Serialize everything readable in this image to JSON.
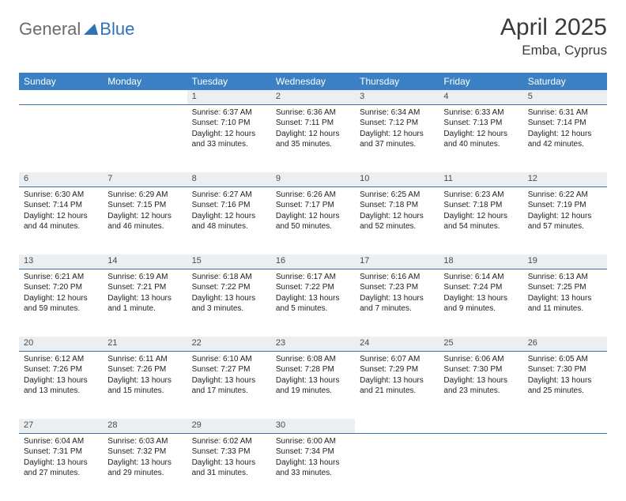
{
  "logo": {
    "general": "General",
    "blue": "Blue"
  },
  "title": "April 2025",
  "location": "Emba, Cyprus",
  "day_headers": [
    "Sunday",
    "Monday",
    "Tuesday",
    "Wednesday",
    "Thursday",
    "Friday",
    "Saturday"
  ],
  "colors": {
    "header_bg": "#3a80c3",
    "header_text": "#ffffff",
    "daynum_bg": "#eceff2",
    "daynum_border": "#3a6fa5",
    "body_text": "#222222",
    "logo_gray": "#6b6b6b",
    "logo_blue": "#2f73b5",
    "title_color": "#3a3a3a"
  },
  "fonts": {
    "title_size_pt": 30,
    "location_size_pt": 17,
    "header_size_pt": 12,
    "daynum_size_pt": 11,
    "cell_size_pt": 10
  },
  "layout": {
    "cols": 7,
    "rows": 5,
    "first_weekday_index": 2
  },
  "weeks": [
    [
      null,
      null,
      {
        "n": "1",
        "sunrise": "6:37 AM",
        "sunset": "7:10 PM",
        "daylight": "12 hours and 33 minutes."
      },
      {
        "n": "2",
        "sunrise": "6:36 AM",
        "sunset": "7:11 PM",
        "daylight": "12 hours and 35 minutes."
      },
      {
        "n": "3",
        "sunrise": "6:34 AM",
        "sunset": "7:12 PM",
        "daylight": "12 hours and 37 minutes."
      },
      {
        "n": "4",
        "sunrise": "6:33 AM",
        "sunset": "7:13 PM",
        "daylight": "12 hours and 40 minutes."
      },
      {
        "n": "5",
        "sunrise": "6:31 AM",
        "sunset": "7:14 PM",
        "daylight": "12 hours and 42 minutes."
      }
    ],
    [
      {
        "n": "6",
        "sunrise": "6:30 AM",
        "sunset": "7:14 PM",
        "daylight": "12 hours and 44 minutes."
      },
      {
        "n": "7",
        "sunrise": "6:29 AM",
        "sunset": "7:15 PM",
        "daylight": "12 hours and 46 minutes."
      },
      {
        "n": "8",
        "sunrise": "6:27 AM",
        "sunset": "7:16 PM",
        "daylight": "12 hours and 48 minutes."
      },
      {
        "n": "9",
        "sunrise": "6:26 AM",
        "sunset": "7:17 PM",
        "daylight": "12 hours and 50 minutes."
      },
      {
        "n": "10",
        "sunrise": "6:25 AM",
        "sunset": "7:18 PM",
        "daylight": "12 hours and 52 minutes."
      },
      {
        "n": "11",
        "sunrise": "6:23 AM",
        "sunset": "7:18 PM",
        "daylight": "12 hours and 54 minutes."
      },
      {
        "n": "12",
        "sunrise": "6:22 AM",
        "sunset": "7:19 PM",
        "daylight": "12 hours and 57 minutes."
      }
    ],
    [
      {
        "n": "13",
        "sunrise": "6:21 AM",
        "sunset": "7:20 PM",
        "daylight": "12 hours and 59 minutes."
      },
      {
        "n": "14",
        "sunrise": "6:19 AM",
        "sunset": "7:21 PM",
        "daylight": "13 hours and 1 minute."
      },
      {
        "n": "15",
        "sunrise": "6:18 AM",
        "sunset": "7:22 PM",
        "daylight": "13 hours and 3 minutes."
      },
      {
        "n": "16",
        "sunrise": "6:17 AM",
        "sunset": "7:22 PM",
        "daylight": "13 hours and 5 minutes."
      },
      {
        "n": "17",
        "sunrise": "6:16 AM",
        "sunset": "7:23 PM",
        "daylight": "13 hours and 7 minutes."
      },
      {
        "n": "18",
        "sunrise": "6:14 AM",
        "sunset": "7:24 PM",
        "daylight": "13 hours and 9 minutes."
      },
      {
        "n": "19",
        "sunrise": "6:13 AM",
        "sunset": "7:25 PM",
        "daylight": "13 hours and 11 minutes."
      }
    ],
    [
      {
        "n": "20",
        "sunrise": "6:12 AM",
        "sunset": "7:26 PM",
        "daylight": "13 hours and 13 minutes."
      },
      {
        "n": "21",
        "sunrise": "6:11 AM",
        "sunset": "7:26 PM",
        "daylight": "13 hours and 15 minutes."
      },
      {
        "n": "22",
        "sunrise": "6:10 AM",
        "sunset": "7:27 PM",
        "daylight": "13 hours and 17 minutes."
      },
      {
        "n": "23",
        "sunrise": "6:08 AM",
        "sunset": "7:28 PM",
        "daylight": "13 hours and 19 minutes."
      },
      {
        "n": "24",
        "sunrise": "6:07 AM",
        "sunset": "7:29 PM",
        "daylight": "13 hours and 21 minutes."
      },
      {
        "n": "25",
        "sunrise": "6:06 AM",
        "sunset": "7:30 PM",
        "daylight": "13 hours and 23 minutes."
      },
      {
        "n": "26",
        "sunrise": "6:05 AM",
        "sunset": "7:30 PM",
        "daylight": "13 hours and 25 minutes."
      }
    ],
    [
      {
        "n": "27",
        "sunrise": "6:04 AM",
        "sunset": "7:31 PM",
        "daylight": "13 hours and 27 minutes."
      },
      {
        "n": "28",
        "sunrise": "6:03 AM",
        "sunset": "7:32 PM",
        "daylight": "13 hours and 29 minutes."
      },
      {
        "n": "29",
        "sunrise": "6:02 AM",
        "sunset": "7:33 PM",
        "daylight": "13 hours and 31 minutes."
      },
      {
        "n": "30",
        "sunrise": "6:00 AM",
        "sunset": "7:34 PM",
        "daylight": "13 hours and 33 minutes."
      },
      null,
      null,
      null
    ]
  ],
  "labels": {
    "sunrise": "Sunrise:",
    "sunset": "Sunset:",
    "daylight": "Daylight:"
  }
}
